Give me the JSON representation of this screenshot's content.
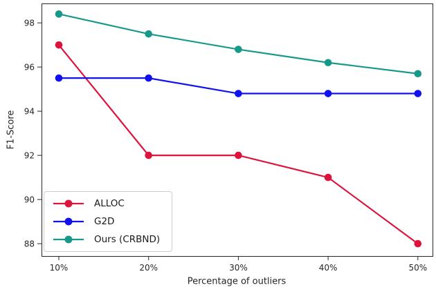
{
  "chart_data": {
    "type": "line",
    "title": "",
    "xlabel": "Percentage of outliers",
    "ylabel": "F1-Score",
    "categories": [
      "10%",
      "20%",
      "30%",
      "40%",
      "50%"
    ],
    "series": [
      {
        "name": "ALLOC",
        "color": "#dc143c",
        "values": [
          97.0,
          92.0,
          92.0,
          91.0,
          88.0
        ]
      },
      {
        "name": "G2D",
        "color": "#1111ee",
        "values": [
          95.5,
          95.5,
          94.8,
          94.8,
          94.8
        ]
      },
      {
        "name": "Ours (CRBND)",
        "color": "#17998a",
        "values": [
          98.4,
          97.5,
          96.8,
          96.2,
          95.7
        ]
      }
    ],
    "yticks": [
      88,
      90,
      92,
      94,
      96,
      98
    ],
    "ylim": [
      87.44,
      98.88
    ],
    "grid": false,
    "legend_position": "lower left",
    "axis_color": "#262626",
    "marker": "circle"
  }
}
